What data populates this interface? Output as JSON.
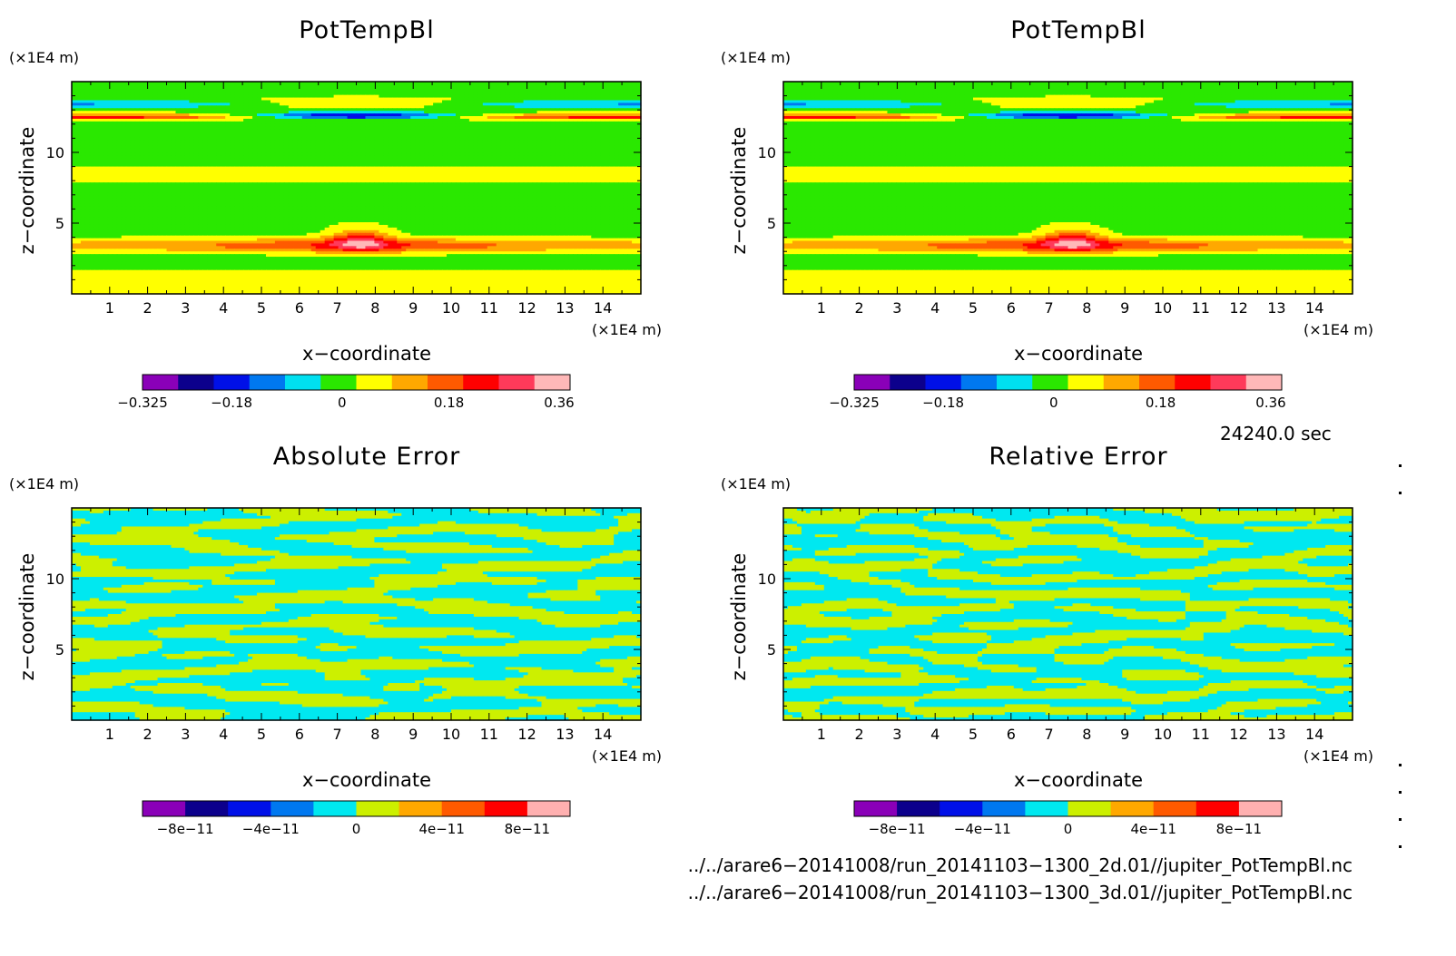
{
  "chart_data": [
    {
      "type": "heatmap",
      "title": "PotTempBl",
      "xlabel": "x−coordinate",
      "ylabel": "z−coordinate",
      "x_unit": "(×1E4 m)",
      "y_unit": "(×1E4 m)",
      "xlim": [
        0,
        15
      ],
      "ylim": [
        0,
        15
      ],
      "x_ticks": [
        "1",
        "2",
        "3",
        "4",
        "5",
        "6",
        "7",
        "8",
        "9",
        "10",
        "11",
        "12",
        "13",
        "14"
      ],
      "y_ticks": [
        "5",
        "10"
      ],
      "colorbar": {
        "colors": [
          "#8a00b8",
          "#0c008c",
          "#0010e8",
          "#0078f0",
          "#00e0f0",
          "#2ae800",
          "#ffff00",
          "#ffa800",
          "#ff5a00",
          "#ff0000",
          "#ff3a5a",
          "#ffb8b8"
        ],
        "tick_labels": [
          "−0.325",
          "−0.18",
          "0",
          "0.18",
          "0.36"
        ]
      },
      "pattern": "smooth"
    },
    {
      "type": "heatmap",
      "title": "PotTempBl",
      "xlabel": "x−coordinate",
      "ylabel": "z−coordinate",
      "x_unit": "(×1E4 m)",
      "y_unit": "(×1E4 m)",
      "xlim": [
        0,
        15
      ],
      "ylim": [
        0,
        15
      ],
      "x_ticks": [
        "1",
        "2",
        "3",
        "4",
        "5",
        "6",
        "7",
        "8",
        "9",
        "10",
        "11",
        "12",
        "13",
        "14"
      ],
      "y_ticks": [
        "5",
        "10"
      ],
      "colorbar": {
        "colors": [
          "#8a00b8",
          "#0c008c",
          "#0010e8",
          "#0078f0",
          "#00e0f0",
          "#2ae800",
          "#ffff00",
          "#ffa800",
          "#ff5a00",
          "#ff0000",
          "#ff3a5a",
          "#ffb8b8"
        ],
        "tick_labels": [
          "−0.325",
          "−0.18",
          "0",
          "0.18",
          "0.36"
        ]
      },
      "pattern": "smooth"
    },
    {
      "type": "heatmap",
      "title": "Absolute Error",
      "xlabel": "x−coordinate",
      "ylabel": "z−coordinate",
      "x_unit": "(×1E4 m)",
      "y_unit": "(×1E4 m)",
      "xlim": [
        0,
        15
      ],
      "ylim": [
        0,
        15
      ],
      "x_ticks": [
        "1",
        "2",
        "3",
        "4",
        "5",
        "6",
        "7",
        "8",
        "9",
        "10",
        "11",
        "12",
        "13",
        "14"
      ],
      "y_ticks": [
        "5",
        "10"
      ],
      "colorbar": {
        "colors": [
          "#8a00b8",
          "#0c008c",
          "#0010e8",
          "#0078f0",
          "#00e8f0",
          "#ccf000",
          "#ffa800",
          "#ff5a00",
          "#ff0000",
          "#ffb0b0"
        ],
        "tick_labels": [
          "−8e−11",
          "−4e−11",
          "0",
          "4e−11",
          "8e−11"
        ]
      },
      "pattern": "noise"
    },
    {
      "type": "heatmap",
      "title": "Relative Error",
      "xlabel": "x−coordinate",
      "ylabel": "z−coordinate",
      "x_unit": "(×1E4 m)",
      "y_unit": "(×1E4 m)",
      "xlim": [
        0,
        15
      ],
      "ylim": [
        0,
        15
      ],
      "x_ticks": [
        "1",
        "2",
        "3",
        "4",
        "5",
        "6",
        "7",
        "8",
        "9",
        "10",
        "11",
        "12",
        "13",
        "14"
      ],
      "y_ticks": [
        "5",
        "10"
      ],
      "colorbar": {
        "colors": [
          "#8a00b8",
          "#0c008c",
          "#0010e8",
          "#0078f0",
          "#00e8f0",
          "#ccf000",
          "#ffa800",
          "#ff5a00",
          "#ff0000",
          "#ffb0b0"
        ],
        "tick_labels": [
          "−8e−11",
          "−4e−11",
          "0",
          "4e−11",
          "8e−11"
        ]
      },
      "pattern": "noise"
    }
  ],
  "time_label": "24240.0 sec",
  "files": [
    "../../arare6−20141008/run_20141103−1300_2d.01//jupiter_PotTempBl.nc",
    "../../arare6−20141008/run_20141103−1300_3d.01//jupiter_PotTempBl.nc"
  ]
}
